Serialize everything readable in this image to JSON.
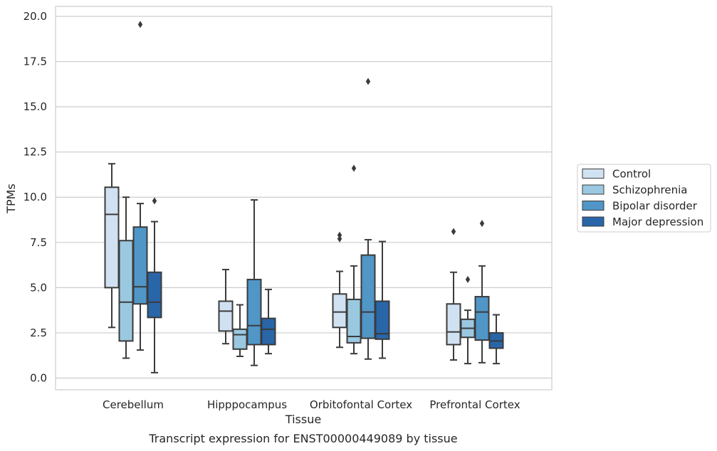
{
  "chart_data": {
    "type": "box",
    "xlabel": "Tissue",
    "ylabel": "TPMs",
    "caption": "Transcript expression for ENST00000449089 by tissue",
    "ylim": [
      -0.65,
      20.55
    ],
    "yticks": [
      "0.0",
      "2.5",
      "5.0",
      "7.5",
      "10.0",
      "12.5",
      "15.0",
      "17.5",
      "20.0"
    ],
    "grid": true,
    "legend_position": "right",
    "categories": [
      "Cerebellum",
      "Hipppocampus",
      "Orbitofontal Cortex",
      "Prefrontal Cortex"
    ],
    "series": [
      {
        "name": "Control",
        "color": "#d0e1f2",
        "boxes": [
          {
            "whislo": 2.8,
            "q1": 5.0,
            "med": 9.05,
            "q3": 10.55,
            "whishi": 11.85,
            "fliers": []
          },
          {
            "whislo": 1.9,
            "q1": 2.6,
            "med": 3.7,
            "q3": 4.25,
            "whishi": 6.0,
            "fliers": []
          },
          {
            "whislo": 1.7,
            "q1": 2.8,
            "med": 3.65,
            "q3": 4.65,
            "whishi": 5.9,
            "fliers": [
              7.7,
              7.9
            ]
          },
          {
            "whislo": 1.0,
            "q1": 1.85,
            "med": 2.55,
            "q3": 4.1,
            "whishi": 5.85,
            "fliers": [
              8.1
            ]
          }
        ]
      },
      {
        "name": "Schizophrenia",
        "color": "#9ac8e0",
        "boxes": [
          {
            "whislo": 1.1,
            "q1": 2.05,
            "med": 4.2,
            "q3": 7.6,
            "whishi": 10.0,
            "fliers": []
          },
          {
            "whislo": 1.2,
            "q1": 1.6,
            "med": 2.4,
            "q3": 2.7,
            "whishi": 4.05,
            "fliers": []
          },
          {
            "whislo": 1.35,
            "q1": 1.95,
            "med": 2.3,
            "q3": 4.35,
            "whishi": 6.2,
            "fliers": [
              11.6
            ]
          },
          {
            "whislo": 0.8,
            "q1": 2.25,
            "med": 2.75,
            "q3": 3.25,
            "whishi": 3.75,
            "fliers": [
              5.45
            ]
          }
        ]
      },
      {
        "name": "Bipolar disorder",
        "color": "#5096c7",
        "boxes": [
          {
            "whislo": 1.55,
            "q1": 4.1,
            "med": 5.05,
            "q3": 8.35,
            "whishi": 9.65,
            "fliers": [
              19.55
            ]
          },
          {
            "whislo": 0.7,
            "q1": 1.85,
            "med": 2.9,
            "q3": 5.45,
            "whishi": 9.85,
            "fliers": []
          },
          {
            "whislo": 1.05,
            "q1": 2.2,
            "med": 3.65,
            "q3": 6.8,
            "whishi": 7.65,
            "fliers": [
              16.4
            ]
          },
          {
            "whislo": 0.85,
            "q1": 2.1,
            "med": 3.65,
            "q3": 4.5,
            "whishi": 6.2,
            "fliers": [
              8.55
            ]
          }
        ]
      },
      {
        "name": "Major depression",
        "color": "#2866a8",
        "boxes": [
          {
            "whislo": 0.3,
            "q1": 3.35,
            "med": 4.2,
            "q3": 5.85,
            "whishi": 8.65,
            "fliers": [
              9.8
            ]
          },
          {
            "whislo": 1.35,
            "q1": 1.85,
            "med": 2.7,
            "q3": 3.3,
            "whishi": 4.9,
            "fliers": []
          },
          {
            "whislo": 1.1,
            "q1": 2.15,
            "med": 2.45,
            "q3": 4.25,
            "whishi": 7.55,
            "fliers": []
          },
          {
            "whislo": 0.8,
            "q1": 1.65,
            "med": 2.05,
            "q3": 2.5,
            "whishi": 3.5,
            "fliers": []
          }
        ]
      }
    ]
  }
}
